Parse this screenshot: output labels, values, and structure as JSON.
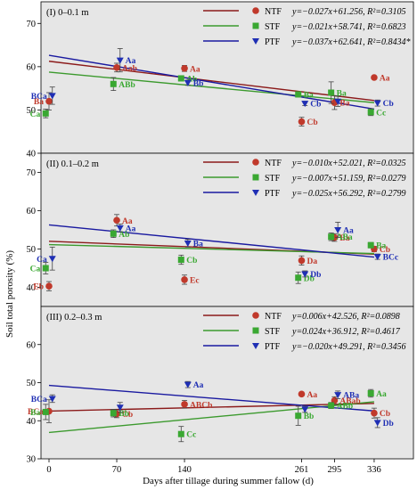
{
  "colors": {
    "NTF": "#c0392b",
    "STF": "#3aa832",
    "PTF": "#1f2fb4",
    "panel_bg": "#e6e6e6",
    "NTF_line": "#8b1a1a",
    "STF_line": "#3c9a2e",
    "PTF_line": "#1a1aa0"
  },
  "chart_data": {
    "type": "scatter",
    "xlabel": "Days after tillage during summer fallow (d)",
    "ylabel": "Soil total porosity (%)",
    "x_ticks": [
      0,
      70,
      140,
      261,
      295,
      336
    ],
    "panels": [
      {
        "title": "(I) 0–0.1 m",
        "ylim": [
          40,
          75
        ],
        "yticks": [
          40,
          50,
          60,
          70
        ],
        "series": [
          {
            "name": "NTF",
            "marker": "circle",
            "equation": "y=−0.027x+61.256, R²=0.3105",
            "points": [
              {
                "x": 0,
                "y": 52.0,
                "err": 2.0,
                "label": "Ba"
              },
              {
                "x": 70,
                "y": 59.8,
                "err": 1.0,
                "label": "Aab"
              },
              {
                "x": 140,
                "y": 59.6,
                "err": 0.7,
                "label": "Aa"
              },
              {
                "x": 261,
                "y": 47.3,
                "err": 1.0,
                "label": "Cb"
              },
              {
                "x": 295,
                "y": 51.7,
                "err": 1.6,
                "label": "Ba"
              },
              {
                "x": 336,
                "y": 57.5,
                "err": 0.0,
                "label": "Aa"
              }
            ]
          },
          {
            "name": "STF",
            "marker": "square",
            "equation": "y=−0.021x+58.741, R²=0.6823",
            "points": [
              {
                "x": 0,
                "y": 49.2,
                "err": 1.0,
                "label": "Ca"
              },
              {
                "x": 70,
                "y": 56.0,
                "err": 1.5,
                "label": "ABb"
              },
              {
                "x": 140,
                "y": 57.3,
                "err": 0.5,
                "label": "Ab"
              },
              {
                "x": 261,
                "y": 53.6,
                "err": 0.6,
                "label": "Ba"
              },
              {
                "x": 295,
                "y": 54.0,
                "err": 2.5,
                "label": "Ba"
              },
              {
                "x": 336,
                "y": 49.5,
                "err": 0.8,
                "label": "Cc"
              }
            ]
          },
          {
            "name": "PTF",
            "marker": "triangle",
            "equation": "y=−0.037x+62.641, R²=0.8434*",
            "points": [
              {
                "x": 0,
                "y": 53.3,
                "err": 2.0,
                "label": "BCa"
              },
              {
                "x": 70,
                "y": 61.5,
                "err": 2.7,
                "label": "Aa"
              },
              {
                "x": 140,
                "y": 56.3,
                "err": 0.6,
                "label": "Bb"
              },
              {
                "x": 261,
                "y": 51.5,
                "err": 0.5,
                "label": "Cb"
              },
              {
                "x": 295,
                "y": 52.0,
                "err": 1.2,
                "label": ""
              },
              {
                "x": 336,
                "y": 51.6,
                "err": 0.7,
                "label": "Cb"
              }
            ]
          }
        ]
      },
      {
        "title": "(II) 0.1–0.2 m",
        "ylim": [
          35,
          75
        ],
        "yticks": [
          40,
          50,
          60,
          70
        ],
        "series": [
          {
            "name": "NTF",
            "marker": "circle",
            "equation": "y=−0.010x+52.021, R²=0.0325",
            "points": [
              {
                "x": 0,
                "y": 40.3,
                "err": 1.2,
                "label": "Eb"
              },
              {
                "x": 70,
                "y": 57.5,
                "err": 1.5,
                "label": "Aa"
              },
              {
                "x": 140,
                "y": 42.0,
                "err": 1.2,
                "label": "Ec"
              },
              {
                "x": 261,
                "y": 47.0,
                "err": 1.2,
                "label": "Da"
              },
              {
                "x": 295,
                "y": 53.0,
                "err": 1.0,
                "label": "Ba"
              },
              {
                "x": 336,
                "y": 50.0,
                "err": 0.7,
                "label": "Cb"
              }
            ]
          },
          {
            "name": "STF",
            "marker": "square",
            "equation": "y=−0.007x+51.159, R²=0.0279",
            "points": [
              {
                "x": 0,
                "y": 45.0,
                "err": 1.5,
                "label": "Ca"
              },
              {
                "x": 70,
                "y": 54.0,
                "err": 1.0,
                "label": "Ab"
              },
              {
                "x": 140,
                "y": 47.2,
                "err": 1.2,
                "label": "Cb"
              },
              {
                "x": 261,
                "y": 42.5,
                "err": 1.5,
                "label": "Db"
              },
              {
                "x": 295,
                "y": 53.2,
                "err": 1.0,
                "label": "ABa"
              },
              {
                "x": 336,
                "y": 51.0,
                "err": 0.7,
                "label": "Ba"
              }
            ]
          },
          {
            "name": "PTF",
            "marker": "triangle",
            "equation": "y=−0.025x+56.292, R²=0.2799",
            "points": [
              {
                "x": 0,
                "y": 47.5,
                "err": 3.0,
                "label": "Ca"
              },
              {
                "x": 70,
                "y": 55.5,
                "err": 1.0,
                "label": "Aa"
              },
              {
                "x": 140,
                "y": 51.5,
                "err": 1.0,
                "label": "Ba"
              },
              {
                "x": 261,
                "y": 43.5,
                "err": 0.8,
                "label": "Db"
              },
              {
                "x": 295,
                "y": 55.0,
                "err": 2.0,
                "label": "Aa"
              },
              {
                "x": 336,
                "y": 48.0,
                "err": 0.7,
                "label": "BCc"
              }
            ]
          }
        ]
      },
      {
        "title": "(III) 0.2–0.3 m",
        "ylim": [
          30,
          70
        ],
        "yticks": [
          30,
          40,
          50,
          60
        ],
        "series": [
          {
            "name": "NTF",
            "marker": "circle",
            "equation": "y=0.006x+42.526, R²=0.0898",
            "points": [
              {
                "x": 0,
                "y": 42.5,
                "err": 3.0,
                "label": "BCa"
              },
              {
                "x": 70,
                "y": 41.8,
                "err": 1.0,
                "label": "Cb"
              },
              {
                "x": 140,
                "y": 44.3,
                "err": 1.0,
                "label": "ABCb"
              },
              {
                "x": 261,
                "y": 47.0,
                "err": 0.3,
                "label": "Aa"
              },
              {
                "x": 295,
                "y": 45.3,
                "err": 1.0,
                "label": "ABab"
              },
              {
                "x": 336,
                "y": 42.0,
                "err": 1.3,
                "label": "Cb"
              }
            ]
          },
          {
            "name": "STF",
            "marker": "square",
            "equation": "y=0.024x+36.912, R²=0.4617",
            "points": [
              {
                "x": 0,
                "y": 42.3,
                "err": 2.0,
                "label": "Ba"
              },
              {
                "x": 70,
                "y": 42.0,
                "err": 1.0,
                "label": "Bb"
              },
              {
                "x": 140,
                "y": 36.5,
                "err": 2.0,
                "label": "Cc"
              },
              {
                "x": 261,
                "y": 41.3,
                "err": 2.5,
                "label": "Bb"
              },
              {
                "x": 295,
                "y": 44.0,
                "err": 0.8,
                "label": "ABb"
              },
              {
                "x": 336,
                "y": 47.2,
                "err": 1.0,
                "label": "Aa"
              }
            ]
          },
          {
            "name": "PTF",
            "marker": "triangle",
            "equation": "y=−0.020x+49.291, R²=0.3456",
            "points": [
              {
                "x": 0,
                "y": 45.8,
                "err": 1.0,
                "label": "BCa"
              },
              {
                "x": 70,
                "y": 43.5,
                "err": 1.3,
                "label": ""
              },
              {
                "x": 140,
                "y": 49.5,
                "err": 0.8,
                "label": "Aa"
              },
              {
                "x": 261,
                "y": 43.0,
                "err": 0.8,
                "label": ""
              },
              {
                "x": 295,
                "y": 46.8,
                "err": 1.0,
                "label": "ABa"
              },
              {
                "x": 336,
                "y": 39.5,
                "err": 1.3,
                "label": "Db"
              }
            ]
          }
        ]
      }
    ]
  }
}
